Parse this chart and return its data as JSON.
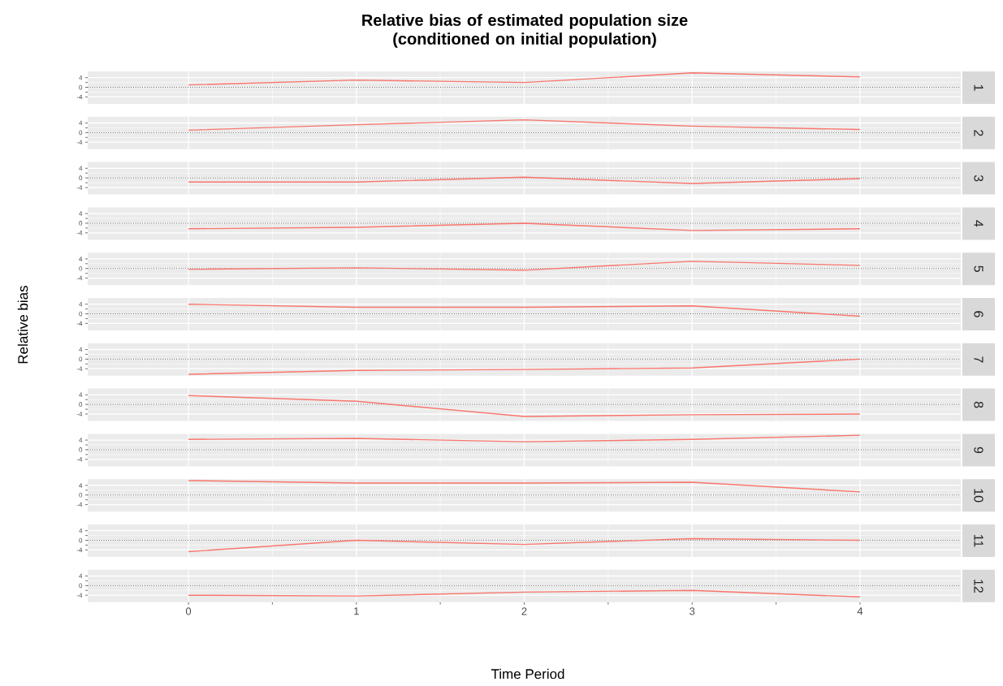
{
  "chart_data": [
    {
      "type": "line",
      "title": "Relative bias of estimated population size\n(conditioned on initial population)",
      "x": [
        0,
        1,
        2,
        3,
        4
      ],
      "xlim": [
        -0.6,
        4.6
      ],
      "xticks": [
        0,
        1,
        2,
        3,
        4
      ],
      "ylim": [
        -6.9,
        6.6
      ],
      "yticks": [
        -4,
        0,
        4
      ],
      "grid": true,
      "tick_labels": "y",
      "ref_lines": [
        {
          "axis": "y",
          "value": 0,
          "color": "#000000",
          "line_style": "dotted"
        }
      ],
      "series": [
        {
          "name": "1",
          "color": "#f8766d",
          "values": [
            1,
            3,
            2,
            6,
            4.3
          ]
        }
      ]
    },
    {
      "type": "line",
      "x": [
        0,
        1,
        2,
        3,
        4
      ],
      "xlim": [
        -0.6,
        4.6
      ],
      "xticks": [
        0,
        1,
        2,
        3,
        4
      ],
      "ylim": [
        -6.9,
        6.6
      ],
      "yticks": [
        -4,
        0,
        4
      ],
      "grid": true,
      "tick_labels": "y",
      "ref_lines": [
        {
          "axis": "y",
          "value": 0,
          "color": "#000000",
          "line_style": "dotted"
        }
      ],
      "series": [
        {
          "name": "2",
          "color": "#f8766d",
          "values": [
            1,
            3.3,
            5.3,
            2.7,
            1.3
          ]
        }
      ]
    },
    {
      "type": "line",
      "x": [
        0,
        1,
        2,
        3,
        4
      ],
      "xlim": [
        -0.6,
        4.6
      ],
      "xticks": [
        0,
        1,
        2,
        3,
        4
      ],
      "ylim": [
        -6.9,
        6.6
      ],
      "yticks": [
        -4,
        0,
        4
      ],
      "grid": true,
      "tick_labels": "y",
      "ref_lines": [
        {
          "axis": "y",
          "value": 0,
          "color": "#000000",
          "line_style": "dotted"
        }
      ],
      "series": [
        {
          "name": "3",
          "color": "#f8766d",
          "values": [
            -1.7,
            -1.7,
            0.3,
            -2.3,
            -0.3
          ]
        }
      ]
    },
    {
      "type": "line",
      "x": [
        0,
        1,
        2,
        3,
        4
      ],
      "xlim": [
        -0.6,
        4.6
      ],
      "xticks": [
        0,
        1,
        2,
        3,
        4
      ],
      "ylim": [
        -6.9,
        6.6
      ],
      "yticks": [
        -4,
        0,
        4
      ],
      "grid": true,
      "tick_labels": "y",
      "ref_lines": [
        {
          "axis": "y",
          "value": 0,
          "color": "#000000",
          "line_style": "dotted"
        }
      ],
      "series": [
        {
          "name": "4",
          "color": "#f8766d",
          "values": [
            -2.3,
            -1.7,
            0,
            -3,
            -2.3
          ]
        }
      ]
    },
    {
      "type": "line",
      "x": [
        0,
        1,
        2,
        3,
        4
      ],
      "xlim": [
        -0.6,
        4.6
      ],
      "xticks": [
        0,
        1,
        2,
        3,
        4
      ],
      "ylim": [
        -6.9,
        6.6
      ],
      "yticks": [
        -4,
        0,
        4
      ],
      "grid": true,
      "tick_labels": "y",
      "ref_lines": [
        {
          "axis": "y",
          "value": 0,
          "color": "#000000",
          "line_style": "dotted"
        }
      ],
      "series": [
        {
          "name": "5",
          "color": "#f8766d",
          "values": [
            -0.3,
            0.3,
            -0.7,
            3,
            1.3
          ]
        }
      ]
    },
    {
      "type": "line",
      "x": [
        0,
        1,
        2,
        3,
        4
      ],
      "xlim": [
        -0.6,
        4.6
      ],
      "xticks": [
        0,
        1,
        2,
        3,
        4
      ],
      "ylim": [
        -6.9,
        6.6
      ],
      "yticks": [
        -4,
        0,
        4
      ],
      "grid": true,
      "tick_labels": "y",
      "ref_lines": [
        {
          "axis": "y",
          "value": 0,
          "color": "#000000",
          "line_style": "dotted"
        }
      ],
      "ylabel": "Relative bias",
      "series": [
        {
          "name": "6",
          "color": "#f8766d",
          "values": [
            4,
            2.7,
            2.7,
            3.3,
            -1
          ]
        }
      ]
    },
    {
      "type": "line",
      "x": [
        0,
        1,
        2,
        3,
        4
      ],
      "xlim": [
        -0.6,
        4.6
      ],
      "xticks": [
        0,
        1,
        2,
        3,
        4
      ],
      "ylim": [
        -6.9,
        6.6
      ],
      "yticks": [
        -4,
        0,
        4
      ],
      "grid": true,
      "tick_labels": "y",
      "ref_lines": [
        {
          "axis": "y",
          "value": 0,
          "color": "#000000",
          "line_style": "dotted"
        }
      ],
      "series": [
        {
          "name": "7",
          "color": "#f8766d",
          "values": [
            -6.3,
            -4.7,
            -4.3,
            -3.7,
            0
          ]
        }
      ]
    },
    {
      "type": "line",
      "x": [
        0,
        1,
        2,
        3,
        4
      ],
      "xlim": [
        -0.6,
        4.6
      ],
      "xticks": [
        0,
        1,
        2,
        3,
        4
      ],
      "ylim": [
        -6.9,
        6.6
      ],
      "yticks": [
        -4,
        0,
        4
      ],
      "grid": true,
      "tick_labels": "y",
      "ref_lines": [
        {
          "axis": "y",
          "value": 0,
          "color": "#000000",
          "line_style": "dotted"
        }
      ],
      "series": [
        {
          "name": "8",
          "color": "#f8766d",
          "values": [
            3.7,
            1.3,
            -5,
            -4.3,
            -4
          ]
        }
      ]
    },
    {
      "type": "line",
      "x": [
        0,
        1,
        2,
        3,
        4
      ],
      "xlim": [
        -0.6,
        4.6
      ],
      "xticks": [
        0,
        1,
        2,
        3,
        4
      ],
      "ylim": [
        -6.9,
        6.6
      ],
      "yticks": [
        -4,
        0,
        4
      ],
      "grid": true,
      "tick_labels": "y",
      "ref_lines": [
        {
          "axis": "y",
          "value": 0,
          "color": "#000000",
          "line_style": "dotted"
        }
      ],
      "series": [
        {
          "name": "9",
          "color": "#f8766d",
          "values": [
            4.3,
            4.7,
            3.3,
            4.3,
            6
          ]
        }
      ]
    },
    {
      "type": "line",
      "x": [
        0,
        1,
        2,
        3,
        4
      ],
      "xlim": [
        -0.6,
        4.6
      ],
      "xticks": [
        0,
        1,
        2,
        3,
        4
      ],
      "ylim": [
        -6.9,
        6.6
      ],
      "yticks": [
        -4,
        0,
        4
      ],
      "grid": true,
      "tick_labels": "y",
      "ref_lines": [
        {
          "axis": "y",
          "value": 0,
          "color": "#000000",
          "line_style": "dotted"
        }
      ],
      "series": [
        {
          "name": "10",
          "color": "#f8766d",
          "values": [
            6,
            5,
            5,
            5.3,
            1.3
          ]
        }
      ]
    },
    {
      "type": "line",
      "x": [
        0,
        1,
        2,
        3,
        4
      ],
      "xlim": [
        -0.6,
        4.6
      ],
      "xticks": [
        0,
        1,
        2,
        3,
        4
      ],
      "ylim": [
        -6.9,
        6.6
      ],
      "yticks": [
        -4,
        0,
        4
      ],
      "grid": true,
      "tick_labels": "y",
      "ref_lines": [
        {
          "axis": "y",
          "value": 0,
          "color": "#000000",
          "line_style": "dotted"
        }
      ],
      "series": [
        {
          "name": "11",
          "color": "#f8766d",
          "values": [
            -4.7,
            0,
            -1.7,
            0.7,
            0
          ]
        }
      ]
    },
    {
      "type": "line",
      "xlabel": "Time Period",
      "x": [
        0,
        1,
        2,
        3,
        4
      ],
      "xlim": [
        -0.6,
        4.6
      ],
      "xticks": [
        0,
        1,
        2,
        3,
        4
      ],
      "ylim": [
        -6.9,
        6.6
      ],
      "yticks": [
        -4,
        0,
        4
      ],
      "grid": true,
      "ref_lines": [
        {
          "axis": "y",
          "value": 0,
          "color": "#000000",
          "line_style": "dotted"
        }
      ],
      "series": [
        {
          "name": "12",
          "color": "#f8766d",
          "values": [
            -4,
            -4.3,
            -2.7,
            -2,
            -4.7
          ]
        }
      ]
    }
  ]
}
